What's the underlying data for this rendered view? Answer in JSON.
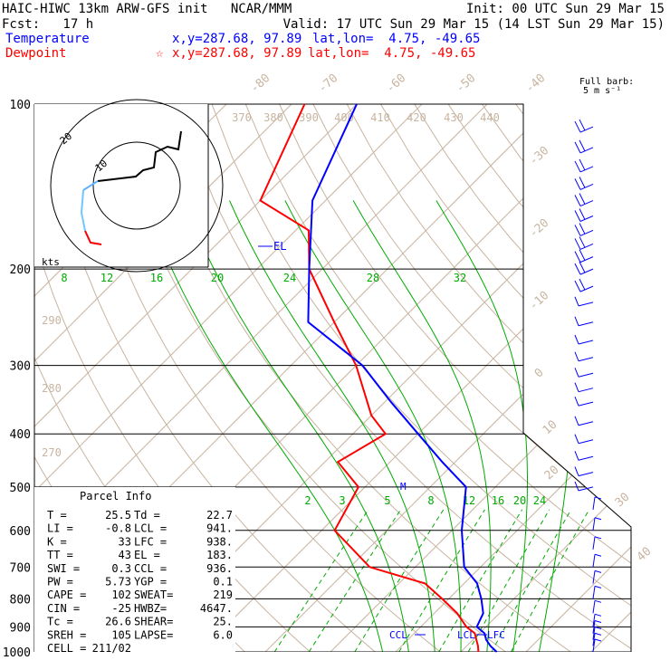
{
  "header": {
    "title": "HAIC-HIWC 13km ARW-GFS init   NCAR/MMM",
    "init": "Init: 00 UTC Sun 29 Mar 15",
    "fcst": "Fcst:   17 h",
    "valid": "Valid: 17 UTC Sun 29 Mar 15 (14 LST Sun 29 Mar 15)",
    "temp_label": "Temperature",
    "temp_xy": "x,y=287.68, 97.89",
    "temp_latlon": "lat,lon=  4.75, -49.65",
    "dew_label": "Dewpoint",
    "dew_xy": "x,y=287.68, 97.89",
    "dew_latlon": "lat,lon=  4.75, -49.65"
  },
  "colors": {
    "temperature": "#0000ff",
    "dewpoint": "#ff0000",
    "isotherm": "#c8b4a0",
    "mixing_ratio": "#00aa00"
  },
  "barb_legend": {
    "line1": "Full barb:",
    "line2": "5 m s⁻¹"
  },
  "hodograph": {
    "units": "kts",
    "ring_label": "20",
    "inner_label": "10"
  },
  "parcel": {
    "title": "Parcel Info",
    "rows": [
      {
        "l1": "T  =",
        "v1": "25.5",
        "l2": "Td =",
        "v2": "22.7"
      },
      {
        "l1": "LI =",
        "v1": "-0.8",
        "l2": "LCL =",
        "v2": "941."
      },
      {
        "l1": "K  =",
        "v1": "33",
        "l2": "LFC =",
        "v2": "938."
      },
      {
        "l1": "TT =",
        "v1": "43",
        "l2": "EL =",
        "v2": "183."
      },
      {
        "l1": "SWI =",
        "v1": "0.3",
        "l2": "CCL =",
        "v2": "936."
      },
      {
        "l1": "PW =",
        "v1": "5.73",
        "l2": "YGP =",
        "v2": "0.1"
      },
      {
        "l1": "CAPE =",
        "v1": "102",
        "l2": "SWEAT=",
        "v2": "219"
      },
      {
        "l1": "CIN =",
        "v1": "-25",
        "l2": "HWBZ=",
        "v2": "4647."
      },
      {
        "l1": "Tc =",
        "v1": "26.6",
        "l2": "SHEAR=",
        "v2": "25."
      },
      {
        "l1": "SREH =",
        "v1": "105",
        "l2": "LAPSE=",
        "v2": "6.0"
      },
      {
        "l1": "CELL =",
        "v1": "211/02",
        "l2": "",
        "v2": ""
      }
    ]
  },
  "chart_data": {
    "type": "line",
    "title": "HAIC-HIWC 13km ARW-GFS init",
    "y_axis": "pressure (hPa), log scale",
    "pressure_ticks": [
      "100",
      "200",
      "300",
      "400",
      "500",
      "600",
      "700",
      "800",
      "900",
      "1000"
    ],
    "isotherm_labels": [
      "-80",
      "-70",
      "-60",
      "-50",
      "-40",
      "-30",
      "-20",
      "-10",
      "0",
      "10",
      "20",
      "30",
      "40"
    ],
    "theta_labels": [
      "370",
      "380",
      "390",
      "400",
      "410",
      "420",
      "430",
      "440",
      "290",
      "280",
      "270"
    ],
    "mixing_ratio_upper": [
      "8",
      "12",
      "16",
      "20",
      "24",
      "28",
      "32"
    ],
    "mixing_ratio_lower": [
      "2",
      "3",
      "5",
      "8",
      "12",
      "16",
      "20",
      "24"
    ],
    "annotations": [
      "EL",
      "CCL",
      "LCL",
      "LFC",
      "M"
    ],
    "series": [
      {
        "name": "Temperature",
        "x": [
          25.5,
          23.6,
          22.0,
          20.8,
          18.6,
          17.5,
          15.0,
          12.0,
          7.5,
          1.5,
          -4.5,
          -12.0,
          -20.0,
          -29.0,
          -39.0,
          -54.0,
          -62.0,
          -72.0,
          -80.0
        ],
        "y": [
          1000,
          975,
          950,
          925,
          900,
          850,
          800,
          750,
          700,
          600,
          500,
          450,
          400,
          350,
          300,
          250,
          200,
          150,
          100
        ]
      },
      {
        "name": "Dewpoint",
        "x": [
          22.7,
          21.7,
          20.5,
          19.3,
          17.0,
          13.5,
          9.0,
          4.0,
          -7.0,
          -18.0,
          -21.0,
          -28.0,
          -25.0,
          -30.0,
          -40.0,
          -50.0,
          -62.0,
          -68.0,
          -80.0,
          -88.0
        ],
        "y": [
          1000,
          975,
          950,
          925,
          900,
          850,
          800,
          750,
          700,
          600,
          500,
          450,
          400,
          370,
          300,
          250,
          200,
          170,
          150,
          100
        ]
      }
    ]
  }
}
